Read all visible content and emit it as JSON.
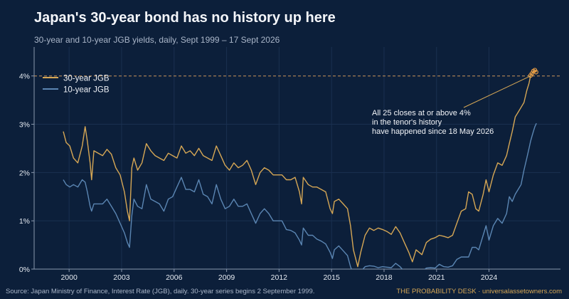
{
  "header": {
    "title": "Japan's 30-year bond has no history up here",
    "subtitle": "30-year and 10-year JGB yields, daily, Sept 1999 – 17 Sept 2026"
  },
  "footer": {
    "source": "Source: Japan Ministry of Finance, Interest Rate (JGB), daily.  30-year series begins 2 September 1999.",
    "brand": "THE PROBABILITY DESK · universalassetowners.com"
  },
  "colors": {
    "background": "#0c1f3a",
    "series_30y": "#d6a755",
    "series_10y": "#5b86b3",
    "reference_line": "#c9955a",
    "grid": "#1a3050",
    "axis_text": "#e6ebf2"
  },
  "chart_data": {
    "type": "line",
    "title": "Japan's 30-year bond has no history up here",
    "subtitle": "30-year and 10-year JGB yields, daily, Sept 1999 – 17 Sept 2026",
    "xlabel": "",
    "ylabel": "",
    "x_range": [
      "1998-01-01",
      "2028-02-01"
    ],
    "ylim": [
      0,
      4.6
    ],
    "x_ticks": [
      {
        "value": "2000-01-01",
        "label": "2000"
      },
      {
        "value": "2003-01-01",
        "label": "2003"
      },
      {
        "value": "2006-01-01",
        "label": "2006"
      },
      {
        "value": "2009-01-01",
        "label": "2009"
      },
      {
        "value": "2012-01-01",
        "label": "2012"
      },
      {
        "value": "2015-01-01",
        "label": "2015"
      },
      {
        "value": "2018-01-01",
        "label": "2018"
      },
      {
        "value": "2021-01-01",
        "label": "2021"
      },
      {
        "value": "2024-01-01",
        "label": "2024"
      }
    ],
    "y_ticks": [
      {
        "value": 0,
        "label": "0%"
      },
      {
        "value": 1,
        "label": "1%"
      },
      {
        "value": 2,
        "label": "2%"
      },
      {
        "value": 3,
        "label": "3%"
      },
      {
        "value": 4,
        "label": "4%"
      }
    ],
    "grid": true,
    "legend": "top-left",
    "reference_line": {
      "y": 4,
      "style": "dashed"
    },
    "annotation": {
      "lines": [
        "All 25 closes at or above 4%",
        "in the tenor's history",
        "have happened since 18 May 2026"
      ],
      "points_to": {
        "x": "2026-05-18",
        "y": 4.0
      }
    },
    "highlight_points": [
      {
        "x": "2026-05-18",
        "y": 4.01
      },
      {
        "x": "2026-06-15",
        "y": 4.05
      },
      {
        "x": "2026-07-15",
        "y": 4.1
      },
      {
        "x": "2026-08-15",
        "y": 4.12
      },
      {
        "x": "2026-09-10",
        "y": 4.08
      }
    ],
    "series": [
      {
        "name": "30-year JGB",
        "color": "#d6a755",
        "points": [
          [
            "1999-09-02",
            2.85
          ],
          [
            "1999-11-01",
            2.62
          ],
          [
            "2000-01-15",
            2.55
          ],
          [
            "2000-04-01",
            2.3
          ],
          [
            "2000-07-01",
            2.2
          ],
          [
            "2000-10-01",
            2.55
          ],
          [
            "2000-12-01",
            2.95
          ],
          [
            "2001-01-15",
            2.65
          ],
          [
            "2001-03-15",
            2.2
          ],
          [
            "2001-04-15",
            1.85
          ],
          [
            "2001-06-01",
            2.45
          ],
          [
            "2001-09-01",
            2.4
          ],
          [
            "2001-12-01",
            2.35
          ],
          [
            "2002-03-01",
            2.48
          ],
          [
            "2002-06-01",
            2.38
          ],
          [
            "2002-09-01",
            2.1
          ],
          [
            "2002-12-01",
            1.95
          ],
          [
            "2003-03-01",
            1.6
          ],
          [
            "2003-05-01",
            1.2
          ],
          [
            "2003-06-15",
            1.0
          ],
          [
            "2003-08-01",
            2.1
          ],
          [
            "2003-09-15",
            2.3
          ],
          [
            "2003-12-01",
            2.05
          ],
          [
            "2004-03-01",
            2.2
          ],
          [
            "2004-06-01",
            2.6
          ],
          [
            "2004-09-01",
            2.45
          ],
          [
            "2004-12-01",
            2.35
          ],
          [
            "2005-03-01",
            2.3
          ],
          [
            "2005-06-01",
            2.25
          ],
          [
            "2005-09-01",
            2.4
          ],
          [
            "2005-12-01",
            2.35
          ],
          [
            "2006-03-01",
            2.3
          ],
          [
            "2006-06-01",
            2.55
          ],
          [
            "2006-09-01",
            2.4
          ],
          [
            "2006-12-01",
            2.45
          ],
          [
            "2007-03-01",
            2.35
          ],
          [
            "2007-06-01",
            2.5
          ],
          [
            "2007-09-01",
            2.35
          ],
          [
            "2007-12-01",
            2.3
          ],
          [
            "2008-03-01",
            2.25
          ],
          [
            "2008-06-01",
            2.55
          ],
          [
            "2008-09-01",
            2.35
          ],
          [
            "2008-12-01",
            2.15
          ],
          [
            "2009-03-01",
            2.05
          ],
          [
            "2009-06-01",
            2.2
          ],
          [
            "2009-09-01",
            2.1
          ],
          [
            "2009-12-01",
            2.15
          ],
          [
            "2010-03-01",
            2.25
          ],
          [
            "2010-06-01",
            2.05
          ],
          [
            "2010-09-01",
            1.75
          ],
          [
            "2010-12-01",
            2.0
          ],
          [
            "2011-03-01",
            2.1
          ],
          [
            "2011-06-01",
            2.05
          ],
          [
            "2011-09-01",
            1.95
          ],
          [
            "2011-12-01",
            1.95
          ],
          [
            "2012-03-01",
            1.95
          ],
          [
            "2012-06-01",
            1.85
          ],
          [
            "2012-09-01",
            1.85
          ],
          [
            "2012-12-01",
            1.9
          ],
          [
            "2013-03-01",
            1.6
          ],
          [
            "2013-04-15",
            1.35
          ],
          [
            "2013-05-20",
            1.9
          ],
          [
            "2013-09-01",
            1.75
          ],
          [
            "2013-12-01",
            1.7
          ],
          [
            "2014-03-01",
            1.7
          ],
          [
            "2014-06-01",
            1.65
          ],
          [
            "2014-09-01",
            1.6
          ],
          [
            "2014-12-01",
            1.25
          ],
          [
            "2015-01-20",
            1.15
          ],
          [
            "2015-03-01",
            1.4
          ],
          [
            "2015-06-01",
            1.45
          ],
          [
            "2015-09-01",
            1.35
          ],
          [
            "2015-12-01",
            1.25
          ],
          [
            "2016-02-01",
            0.9
          ],
          [
            "2016-04-01",
            0.4
          ],
          [
            "2016-07-01",
            0.05
          ],
          [
            "2016-09-01",
            0.35
          ],
          [
            "2016-12-01",
            0.7
          ],
          [
            "2017-03-01",
            0.85
          ],
          [
            "2017-06-01",
            0.8
          ],
          [
            "2017-09-01",
            0.85
          ],
          [
            "2017-12-01",
            0.82
          ],
          [
            "2018-03-01",
            0.78
          ],
          [
            "2018-06-01",
            0.72
          ],
          [
            "2018-09-01",
            0.88
          ],
          [
            "2018-12-01",
            0.75
          ],
          [
            "2019-03-01",
            0.55
          ],
          [
            "2019-06-01",
            0.35
          ],
          [
            "2019-08-15",
            0.15
          ],
          [
            "2019-11-01",
            0.4
          ],
          [
            "2020-03-01",
            0.3
          ],
          [
            "2020-06-01",
            0.55
          ],
          [
            "2020-09-01",
            0.62
          ],
          [
            "2020-12-01",
            0.65
          ],
          [
            "2021-03-01",
            0.7
          ],
          [
            "2021-06-01",
            0.68
          ],
          [
            "2021-09-01",
            0.65
          ],
          [
            "2021-12-01",
            0.7
          ],
          [
            "2022-03-01",
            0.95
          ],
          [
            "2022-06-01",
            1.2
          ],
          [
            "2022-09-01",
            1.25
          ],
          [
            "2022-11-01",
            1.6
          ],
          [
            "2023-01-15",
            1.55
          ],
          [
            "2023-04-01",
            1.25
          ],
          [
            "2023-06-01",
            1.2
          ],
          [
            "2023-09-01",
            1.55
          ],
          [
            "2023-11-01",
            1.85
          ],
          [
            "2024-01-01",
            1.6
          ],
          [
            "2024-04-01",
            1.95
          ],
          [
            "2024-07-01",
            2.2
          ],
          [
            "2024-10-01",
            2.15
          ],
          [
            "2025-01-01",
            2.35
          ],
          [
            "2025-03-01",
            2.6
          ],
          [
            "2025-05-01",
            2.85
          ],
          [
            "2025-07-01",
            3.15
          ],
          [
            "2025-09-01",
            3.25
          ],
          [
            "2025-11-01",
            3.35
          ],
          [
            "2026-01-01",
            3.45
          ],
          [
            "2026-03-01",
            3.7
          ],
          [
            "2026-04-15",
            3.85
          ],
          [
            "2026-05-18",
            4.01
          ],
          [
            "2026-06-15",
            4.05
          ],
          [
            "2026-07-15",
            4.1
          ],
          [
            "2026-08-15",
            4.12
          ],
          [
            "2026-09-17",
            4.08
          ]
        ]
      },
      {
        "name": "10-year JGB",
        "color": "#5b86b3",
        "points": [
          [
            "1999-09-02",
            1.85
          ],
          [
            "1999-11-01",
            1.75
          ],
          [
            "2000-01-15",
            1.7
          ],
          [
            "2000-04-01",
            1.75
          ],
          [
            "2000-07-01",
            1.7
          ],
          [
            "2000-10-01",
            1.85
          ],
          [
            "2000-12-01",
            1.8
          ],
          [
            "2001-01-15",
            1.6
          ],
          [
            "2001-03-15",
            1.3
          ],
          [
            "2001-04-15",
            1.2
          ],
          [
            "2001-06-01",
            1.35
          ],
          [
            "2001-09-01",
            1.35
          ],
          [
            "2001-12-01",
            1.35
          ],
          [
            "2002-03-01",
            1.45
          ],
          [
            "2002-06-01",
            1.3
          ],
          [
            "2002-09-01",
            1.15
          ],
          [
            "2002-12-01",
            0.95
          ],
          [
            "2003-03-01",
            0.75
          ],
          [
            "2003-05-01",
            0.55
          ],
          [
            "2003-06-15",
            0.45
          ],
          [
            "2003-08-01",
            1.1
          ],
          [
            "2003-09-15",
            1.45
          ],
          [
            "2003-12-01",
            1.3
          ],
          [
            "2004-03-01",
            1.25
          ],
          [
            "2004-06-01",
            1.75
          ],
          [
            "2004-09-01",
            1.45
          ],
          [
            "2004-12-01",
            1.4
          ],
          [
            "2005-03-01",
            1.35
          ],
          [
            "2005-06-01",
            1.2
          ],
          [
            "2005-09-01",
            1.45
          ],
          [
            "2005-12-01",
            1.5
          ],
          [
            "2006-03-01",
            1.7
          ],
          [
            "2006-06-01",
            1.9
          ],
          [
            "2006-09-01",
            1.65
          ],
          [
            "2006-12-01",
            1.65
          ],
          [
            "2007-03-01",
            1.6
          ],
          [
            "2007-06-01",
            1.85
          ],
          [
            "2007-09-01",
            1.55
          ],
          [
            "2007-12-01",
            1.5
          ],
          [
            "2008-03-01",
            1.35
          ],
          [
            "2008-06-01",
            1.75
          ],
          [
            "2008-09-01",
            1.45
          ],
          [
            "2008-12-01",
            1.25
          ],
          [
            "2009-03-01",
            1.3
          ],
          [
            "2009-06-01",
            1.45
          ],
          [
            "2009-09-01",
            1.3
          ],
          [
            "2009-12-01",
            1.3
          ],
          [
            "2010-03-01",
            1.35
          ],
          [
            "2010-06-01",
            1.15
          ],
          [
            "2010-09-01",
            0.95
          ],
          [
            "2010-12-01",
            1.15
          ],
          [
            "2011-03-01",
            1.25
          ],
          [
            "2011-06-01",
            1.15
          ],
          [
            "2011-09-01",
            1.0
          ],
          [
            "2011-12-01",
            1.0
          ],
          [
            "2012-03-01",
            1.0
          ],
          [
            "2012-06-01",
            0.82
          ],
          [
            "2012-09-01",
            0.8
          ],
          [
            "2012-12-01",
            0.75
          ],
          [
            "2013-03-01",
            0.6
          ],
          [
            "2013-04-15",
            0.5
          ],
          [
            "2013-05-20",
            0.85
          ],
          [
            "2013-09-01",
            0.7
          ],
          [
            "2013-12-01",
            0.7
          ],
          [
            "2014-03-01",
            0.62
          ],
          [
            "2014-06-01",
            0.58
          ],
          [
            "2014-09-01",
            0.52
          ],
          [
            "2014-12-01",
            0.35
          ],
          [
            "2015-01-20",
            0.22
          ],
          [
            "2015-03-01",
            0.4
          ],
          [
            "2015-06-01",
            0.48
          ],
          [
            "2015-09-01",
            0.38
          ],
          [
            "2015-12-01",
            0.28
          ],
          [
            "2016-02-01",
            0.05
          ],
          [
            "2016-04-01",
            -0.1
          ],
          [
            "2016-07-01",
            -0.25
          ],
          [
            "2016-09-01",
            -0.05
          ],
          [
            "2016-12-01",
            0.05
          ],
          [
            "2017-03-01",
            0.07
          ],
          [
            "2017-06-01",
            0.06
          ],
          [
            "2017-09-01",
            0.03
          ],
          [
            "2017-12-01",
            0.05
          ],
          [
            "2018-03-01",
            0.04
          ],
          [
            "2018-06-01",
            0.03
          ],
          [
            "2018-09-01",
            0.12
          ],
          [
            "2018-12-01",
            0.05
          ],
          [
            "2019-03-01",
            -0.05
          ],
          [
            "2019-06-01",
            -0.12
          ],
          [
            "2019-08-15",
            -0.25
          ],
          [
            "2019-11-01",
            -0.08
          ],
          [
            "2020-03-01",
            -0.05
          ],
          [
            "2020-06-01",
            0.02
          ],
          [
            "2020-09-01",
            0.03
          ],
          [
            "2020-12-01",
            0.02
          ],
          [
            "2021-03-01",
            0.1
          ],
          [
            "2021-06-01",
            0.05
          ],
          [
            "2021-09-01",
            0.04
          ],
          [
            "2021-12-01",
            0.07
          ],
          [
            "2022-03-01",
            0.2
          ],
          [
            "2022-06-01",
            0.25
          ],
          [
            "2022-09-01",
            0.25
          ],
          [
            "2022-11-01",
            0.25
          ],
          [
            "2023-01-15",
            0.45
          ],
          [
            "2023-04-01",
            0.45
          ],
          [
            "2023-06-01",
            0.4
          ],
          [
            "2023-09-01",
            0.7
          ],
          [
            "2023-11-01",
            0.9
          ],
          [
            "2024-01-01",
            0.6
          ],
          [
            "2024-04-01",
            0.9
          ],
          [
            "2024-07-01",
            1.05
          ],
          [
            "2024-10-01",
            0.95
          ],
          [
            "2025-01-01",
            1.15
          ],
          [
            "2025-03-01",
            1.5
          ],
          [
            "2025-05-01",
            1.4
          ],
          [
            "2025-07-01",
            1.55
          ],
          [
            "2025-09-01",
            1.65
          ],
          [
            "2025-11-01",
            1.75
          ],
          [
            "2026-01-01",
            2.05
          ],
          [
            "2026-03-01",
            2.3
          ],
          [
            "2026-04-15",
            2.5
          ],
          [
            "2026-05-18",
            2.65
          ],
          [
            "2026-06-15",
            2.75
          ],
          [
            "2026-07-15",
            2.85
          ],
          [
            "2026-08-15",
            2.95
          ],
          [
            "2026-09-17",
            3.02
          ]
        ]
      }
    ]
  }
}
